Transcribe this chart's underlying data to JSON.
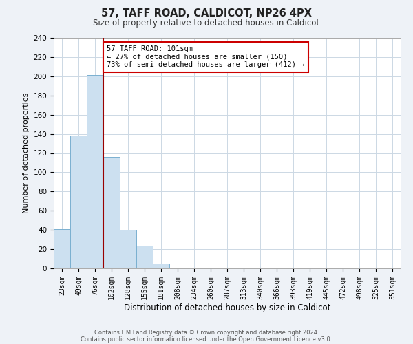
{
  "title": "57, TAFF ROAD, CALDICOT, NP26 4PX",
  "subtitle": "Size of property relative to detached houses in Caldicot",
  "xlabel": "Distribution of detached houses by size in Caldicot",
  "ylabel": "Number of detached properties",
  "bin_labels": [
    "23sqm",
    "49sqm",
    "76sqm",
    "102sqm",
    "128sqm",
    "155sqm",
    "181sqm",
    "208sqm",
    "234sqm",
    "260sqm",
    "287sqm",
    "313sqm",
    "340sqm",
    "366sqm",
    "393sqm",
    "419sqm",
    "445sqm",
    "472sqm",
    "498sqm",
    "525sqm",
    "551sqm"
  ],
  "bar_values": [
    41,
    138,
    201,
    116,
    40,
    24,
    5,
    1,
    0,
    0,
    0,
    0,
    0,
    0,
    0,
    0,
    0,
    0,
    0,
    0,
    1
  ],
  "bar_color": "#cce0f0",
  "bar_edge_color": "#7ab0d0",
  "property_line_color": "#990000",
  "annotation_text": "57 TAFF ROAD: 101sqm\n← 27% of detached houses are smaller (150)\n73% of semi-detached houses are larger (412) →",
  "annotation_box_color": "#ffffff",
  "annotation_box_edge_color": "#cc0000",
  "ylim": [
    0,
    240
  ],
  "yticks": [
    0,
    20,
    40,
    60,
    80,
    100,
    120,
    140,
    160,
    180,
    200,
    220,
    240
  ],
  "footnote1": "Contains HM Land Registry data © Crown copyright and database right 2024.",
  "footnote2": "Contains public sector information licensed under the Open Government Licence v3.0.",
  "bg_color": "#eef2f7",
  "plot_bg_color": "#ffffff",
  "grid_color": "#ccd8e4"
}
